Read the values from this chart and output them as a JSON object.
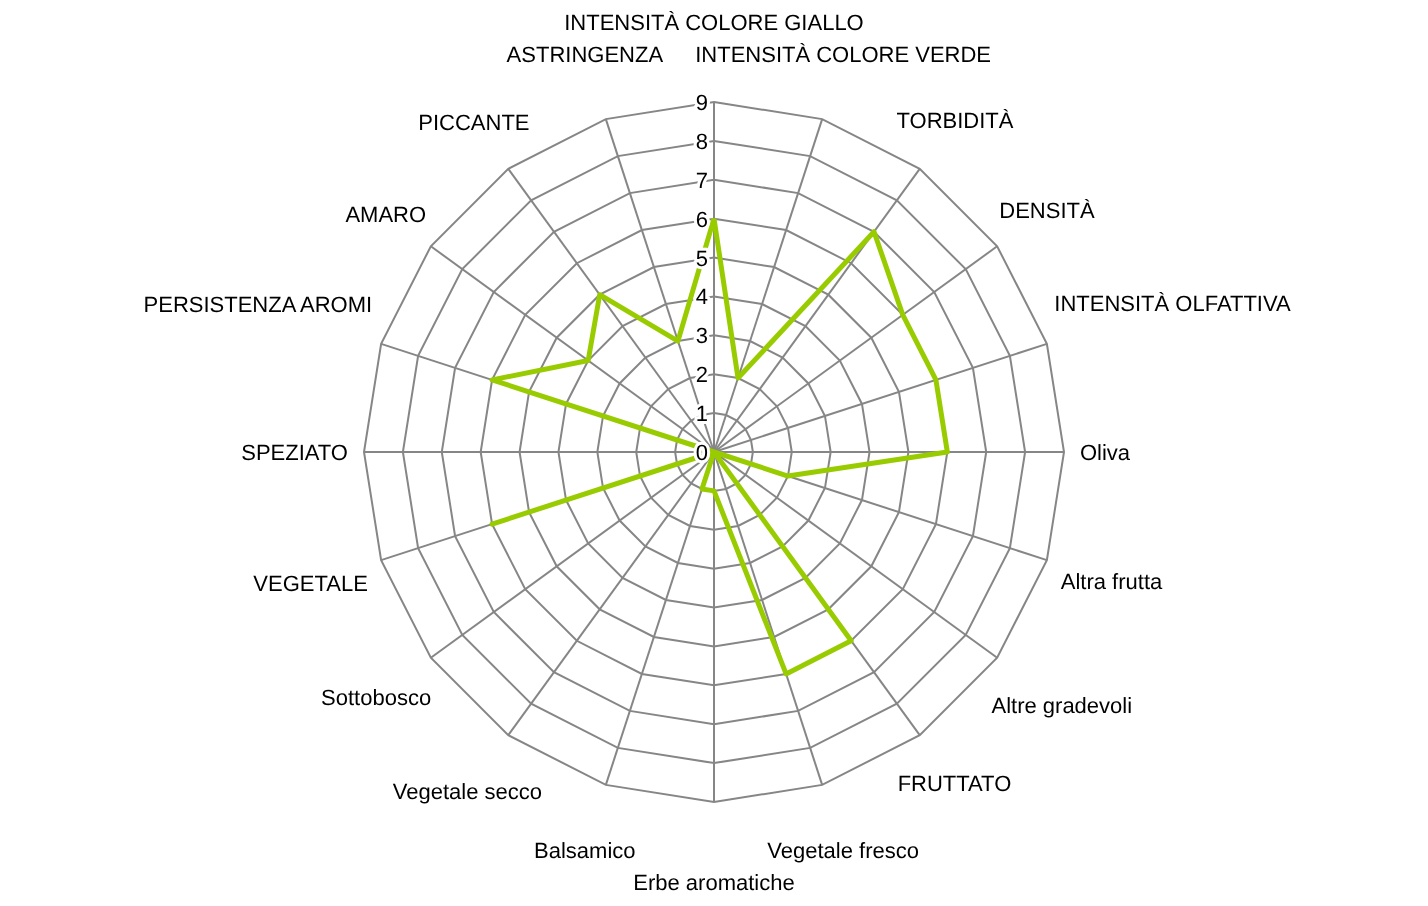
{
  "chart_data": {
    "type": "radar",
    "categories": [
      "INTENSITÀ COLORE GIALLO",
      "INTENSITÀ COLORE VERDE",
      "TORBIDITÀ",
      "DENSITÀ",
      "INTENSITÀ OLFATTIVA",
      "Oliva",
      "Altra frutta",
      "Altre gradevoli",
      "FRUTTATO",
      "Vegetale fresco",
      "Erbe aromatiche",
      "Balsamico",
      "Vegetale secco",
      "Sottobosco",
      "VEGETALE",
      "SPEZIATO",
      "PERSISTENZA AROMI",
      "AMARO",
      "PICCANTE",
      "ASTRINGENZA"
    ],
    "series": [
      {
        "color": "#99cc00",
        "values": [
          6,
          2,
          7,
          6,
          6,
          6,
          2,
          0,
          6,
          6,
          1,
          1,
          0,
          0,
          6,
          0,
          6,
          4,
          5,
          3
        ]
      }
    ],
    "ylim": [
      0,
      9
    ],
    "yticks": [
      0,
      1,
      2,
      3,
      4,
      5,
      6,
      7,
      8,
      9
    ],
    "grid": true,
    "marker": "none",
    "line_style": "solid"
  }
}
